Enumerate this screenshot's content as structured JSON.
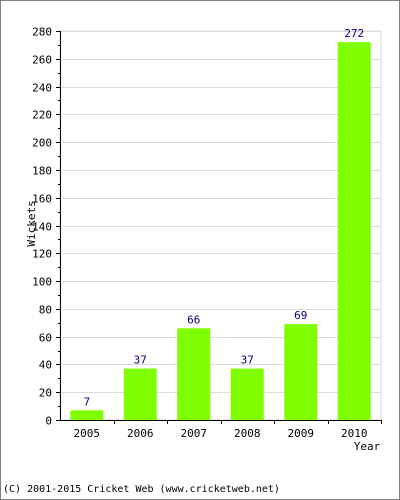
{
  "chart_data": {
    "type": "bar",
    "categories": [
      "2005",
      "2006",
      "2007",
      "2008",
      "2009",
      "2010"
    ],
    "values": [
      7,
      37,
      66,
      37,
      69,
      272
    ],
    "xlabel": "Year",
    "ylabel": "Wickets",
    "ylim": [
      0,
      280
    ],
    "yticks": [
      0,
      20,
      40,
      60,
      80,
      100,
      120,
      140,
      160,
      180,
      200,
      220,
      240,
      260,
      280
    ],
    "grid": true,
    "bar_color": "#80ff00",
    "label_color": "#000080"
  },
  "footer": {
    "copyright": "(C) 2001-2015 Cricket Web (www.cricketweb.net)"
  }
}
